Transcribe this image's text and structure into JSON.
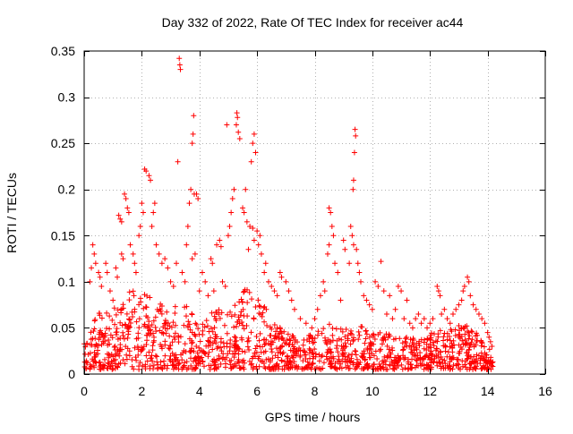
{
  "chart_data": {
    "type": "scatter",
    "title": "Day 332 of 2022, Rate Of TEC Index for receiver ac44",
    "xlabel": "GPS time / hours",
    "ylabel": "ROTI / TECUs",
    "xlim": [
      0,
      16
    ],
    "ylim": [
      0,
      0.35
    ],
    "xticks": [
      0,
      2,
      4,
      6,
      8,
      10,
      12,
      14,
      16
    ],
    "yticks": [
      0,
      0.05,
      0.1,
      0.15,
      0.2,
      0.25,
      0.3,
      0.35
    ],
    "xtick_labels": [
      "0",
      "2",
      "4",
      "6",
      "8",
      "10",
      "12",
      "14",
      "16"
    ],
    "ytick_labels": [
      "0",
      "0.05",
      "0.1",
      "0.15",
      "0.2",
      "0.25",
      "0.3",
      "0.35"
    ],
    "grid": true,
    "marker": "+",
    "color": "#ff0000",
    "series": [
      {
        "name": "ROTI",
        "points": [
          [
            3.3,
            0.342
          ],
          [
            3.32,
            0.335
          ],
          [
            3.34,
            0.33
          ],
          [
            3.25,
            0.23
          ],
          [
            5.3,
            0.283
          ],
          [
            5.32,
            0.278
          ],
          [
            5.28,
            0.27
          ],
          [
            5.35,
            0.262
          ],
          [
            5.4,
            0.255
          ],
          [
            4.95,
            0.27
          ],
          [
            5.9,
            0.26
          ],
          [
            5.85,
            0.25
          ],
          [
            5.95,
            0.24
          ],
          [
            5.8,
            0.23
          ],
          [
            3.8,
            0.28
          ],
          [
            3.78,
            0.26
          ],
          [
            3.75,
            0.25
          ],
          [
            3.82,
            0.195
          ],
          [
            3.7,
            0.2
          ],
          [
            3.65,
            0.185
          ],
          [
            9.4,
            0.265
          ],
          [
            9.42,
            0.258
          ],
          [
            9.38,
            0.24
          ],
          [
            9.35,
            0.21
          ],
          [
            9.33,
            0.2
          ],
          [
            2.1,
            0.222
          ],
          [
            2.15,
            0.22
          ],
          [
            2.25,
            0.215
          ],
          [
            2.3,
            0.21
          ],
          [
            1.4,
            0.195
          ],
          [
            1.45,
            0.19
          ],
          [
            1.5,
            0.18
          ],
          [
            1.55,
            0.175
          ],
          [
            1.2,
            0.172
          ],
          [
            1.25,
            0.168
          ],
          [
            1.3,
            0.165
          ],
          [
            2.0,
            0.185
          ],
          [
            2.05,
            0.175
          ],
          [
            1.95,
            0.16
          ],
          [
            1.9,
            0.15
          ],
          [
            2.45,
            0.185
          ],
          [
            2.4,
            0.175
          ],
          [
            2.35,
            0.16
          ],
          [
            2.5,
            0.14
          ],
          [
            3.9,
            0.195
          ],
          [
            3.95,
            0.19
          ],
          [
            3.6,
            0.16
          ],
          [
            3.55,
            0.14
          ],
          [
            3.85,
            0.13
          ],
          [
            3.75,
            0.125
          ],
          [
            5.6,
            0.2
          ],
          [
            5.5,
            0.18
          ],
          [
            5.55,
            0.175
          ],
          [
            5.65,
            0.165
          ],
          [
            5.75,
            0.16
          ],
          [
            5.85,
            0.158
          ],
          [
            6.0,
            0.155
          ],
          [
            6.1,
            0.15
          ],
          [
            5.9,
            0.145
          ],
          [
            6.05,
            0.14
          ],
          [
            5.7,
            0.135
          ],
          [
            6.15,
            0.13
          ],
          [
            6.3,
            0.12
          ],
          [
            6.25,
            0.11
          ],
          [
            4.4,
            0.125
          ],
          [
            4.45,
            0.12
          ],
          [
            4.6,
            0.14
          ],
          [
            4.7,
            0.145
          ],
          [
            4.75,
            0.138
          ],
          [
            5.0,
            0.15
          ],
          [
            5.05,
            0.16
          ],
          [
            5.1,
            0.175
          ],
          [
            5.15,
            0.19
          ],
          [
            5.2,
            0.2
          ],
          [
            8.5,
            0.18
          ],
          [
            8.55,
            0.175
          ],
          [
            8.6,
            0.16
          ],
          [
            8.65,
            0.15
          ],
          [
            8.5,
            0.14
          ],
          [
            8.45,
            0.13
          ],
          [
            8.7,
            0.12
          ],
          [
            8.8,
            0.11
          ],
          [
            9.0,
            0.145
          ],
          [
            9.05,
            0.135
          ],
          [
            9.25,
            0.16
          ],
          [
            9.3,
            0.15
          ],
          [
            9.35,
            0.14
          ],
          [
            9.45,
            0.135
          ],
          [
            9.5,
            0.12
          ],
          [
            9.55,
            0.11
          ],
          [
            9.6,
            0.1
          ],
          [
            9.2,
            0.12
          ],
          [
            10.3,
            0.122
          ],
          [
            10.1,
            0.1
          ],
          [
            10.2,
            0.095
          ],
          [
            10.4,
            0.09
          ],
          [
            10.6,
            0.085
          ],
          [
            10.9,
            0.095
          ],
          [
            11.0,
            0.09
          ],
          [
            11.2,
            0.08
          ],
          [
            12.25,
            0.095
          ],
          [
            12.3,
            0.09
          ],
          [
            12.35,
            0.085
          ],
          [
            12.5,
            0.07
          ],
          [
            13.3,
            0.105
          ],
          [
            13.35,
            0.1
          ],
          [
            13.2,
            0.095
          ],
          [
            13.15,
            0.09
          ],
          [
            13.4,
            0.085
          ],
          [
            13.1,
            0.08
          ],
          [
            13.5,
            0.075
          ],
          [
            13.6,
            0.07
          ],
          [
            0.3,
            0.14
          ],
          [
            0.35,
            0.13
          ],
          [
            0.4,
            0.12
          ],
          [
            0.5,
            0.11
          ],
          [
            0.55,
            0.105
          ],
          [
            0.25,
            0.115
          ],
          [
            0.2,
            0.1
          ],
          [
            0.6,
            0.095
          ],
          [
            0.75,
            0.12
          ],
          [
            0.8,
            0.11
          ],
          [
            0.9,
            0.09
          ],
          [
            1.0,
            0.08
          ],
          [
            1.1,
            0.115
          ],
          [
            1.15,
            0.105
          ],
          [
            1.3,
            0.13
          ],
          [
            1.35,
            0.125
          ],
          [
            1.6,
            0.14
          ],
          [
            1.7,
            0.13
          ],
          [
            1.75,
            0.12
          ],
          [
            1.8,
            0.11
          ],
          [
            2.6,
            0.13
          ],
          [
            2.7,
            0.12
          ],
          [
            2.8,
            0.125
          ],
          [
            2.9,
            0.115
          ],
          [
            3.0,
            0.1
          ],
          [
            3.1,
            0.095
          ],
          [
            3.2,
            0.12
          ],
          [
            3.4,
            0.11
          ],
          [
            3.5,
            0.1
          ],
          [
            4.0,
            0.09
          ],
          [
            4.1,
            0.11
          ],
          [
            4.2,
            0.1
          ],
          [
            4.3,
            0.085
          ],
          [
            4.5,
            0.09
          ],
          [
            4.8,
            0.1
          ],
          [
            4.9,
            0.095
          ],
          [
            6.4,
            0.1
          ],
          [
            6.5,
            0.095
          ],
          [
            6.6,
            0.09
          ],
          [
            6.7,
            0.085
          ],
          [
            6.8,
            0.11
          ],
          [
            6.85,
            0.105
          ],
          [
            7.0,
            0.1
          ],
          [
            7.1,
            0.09
          ],
          [
            7.2,
            0.08
          ],
          [
            7.3,
            0.07
          ],
          [
            7.5,
            0.06
          ],
          [
            7.7,
            0.055
          ],
          [
            7.9,
            0.05
          ],
          [
            8.0,
            0.06
          ],
          [
            8.1,
            0.07
          ],
          [
            8.2,
            0.085
          ],
          [
            8.3,
            0.1
          ],
          [
            8.35,
            0.09
          ],
          [
            8.9,
            0.08
          ],
          [
            9.7,
            0.085
          ],
          [
            9.8,
            0.08
          ],
          [
            9.9,
            0.075
          ],
          [
            10.0,
            0.07
          ],
          [
            10.5,
            0.065
          ],
          [
            10.7,
            0.06
          ],
          [
            10.8,
            0.07
          ],
          [
            11.1,
            0.06
          ],
          [
            11.3,
            0.055
          ],
          [
            11.4,
            0.05
          ],
          [
            11.5,
            0.06
          ],
          [
            11.6,
            0.065
          ],
          [
            11.7,
            0.055
          ],
          [
            11.8,
            0.06
          ],
          [
            11.9,
            0.05
          ],
          [
            12.0,
            0.055
          ],
          [
            12.1,
            0.06
          ],
          [
            12.4,
            0.065
          ],
          [
            12.6,
            0.06
          ],
          [
            12.7,
            0.055
          ],
          [
            12.8,
            0.065
          ],
          [
            12.9,
            0.07
          ],
          [
            13.0,
            0.075
          ],
          [
            13.7,
            0.065
          ],
          [
            13.8,
            0.06
          ],
          [
            13.9,
            0.055
          ],
          [
            14.0,
            0.045
          ],
          [
            14.05,
            0.04
          ],
          [
            14.1,
            0.035
          ],
          [
            14.15,
            0.03
          ]
        ]
      }
    ],
    "dense_band": {
      "description": "dense scatter of ROTI values near baseline",
      "x_range": [
        0.0,
        14.2
      ],
      "y_floor": 0.005,
      "envelope": [
        [
          0.0,
          0.035
        ],
        [
          0.2,
          0.045
        ],
        [
          0.5,
          0.07
        ],
        [
          1.0,
          0.07
        ],
        [
          1.5,
          0.09
        ],
        [
          2.0,
          0.09
        ],
        [
          2.5,
          0.08
        ],
        [
          3.0,
          0.075
        ],
        [
          3.5,
          0.075
        ],
        [
          4.0,
          0.06
        ],
        [
          4.5,
          0.07
        ],
        [
          5.0,
          0.075
        ],
        [
          5.5,
          0.095
        ],
        [
          6.0,
          0.09
        ],
        [
          6.5,
          0.06
        ],
        [
          7.0,
          0.045
        ],
        [
          7.5,
          0.04
        ],
        [
          8.0,
          0.045
        ],
        [
          8.5,
          0.055
        ],
        [
          9.0,
          0.05
        ],
        [
          9.5,
          0.055
        ],
        [
          10.0,
          0.045
        ],
        [
          10.5,
          0.045
        ],
        [
          11.0,
          0.04
        ],
        [
          11.5,
          0.04
        ],
        [
          12.0,
          0.045
        ],
        [
          12.5,
          0.05
        ],
        [
          13.0,
          0.055
        ],
        [
          13.5,
          0.05
        ],
        [
          14.0,
          0.03
        ],
        [
          14.2,
          0.025
        ]
      ],
      "count": 1400
    }
  }
}
